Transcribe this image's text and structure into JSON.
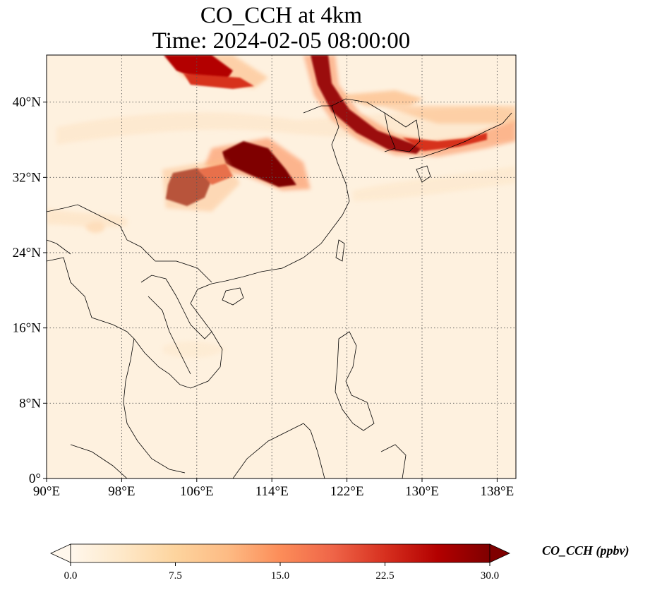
{
  "title": {
    "line1": "CO_CCH at 4km",
    "line2": "Time: 2024-02-05 08:00:00"
  },
  "map": {
    "projection": "PlateCarree",
    "lon_range": [
      90,
      140
    ],
    "lat_range": [
      0,
      45
    ],
    "gridlines": "dotted",
    "lon_ticks": [
      {
        "value": 90,
        "label": "90°E"
      },
      {
        "value": 98,
        "label": "98°E"
      },
      {
        "value": 106,
        "label": "106°E"
      },
      {
        "value": 114,
        "label": "114°E"
      },
      {
        "value": 122,
        "label": "122°E"
      },
      {
        "value": 130,
        "label": "130°E"
      },
      {
        "value": 138,
        "label": "138°E"
      }
    ],
    "lat_ticks": [
      {
        "value": 0,
        "label": "0°"
      },
      {
        "value": 8,
        "label": "8°N"
      },
      {
        "value": 16,
        "label": "16°N"
      },
      {
        "value": 24,
        "label": "24°N"
      },
      {
        "value": 32,
        "label": "32°N"
      },
      {
        "value": 40,
        "label": "40°N"
      }
    ]
  },
  "colorbar": {
    "label": "CO_CCH (ppbv)",
    "colormap": "OrRd",
    "range": [
      0,
      30
    ],
    "extend": "both",
    "ticks": [
      "0.0",
      "7.5",
      "15.0",
      "22.5",
      "30.0"
    ],
    "colors": [
      "#fff7ec",
      "#fee8c8",
      "#fdd49e",
      "#fdbb84",
      "#fc8d59",
      "#ef6548",
      "#d7301f",
      "#b30000",
      "#7f0000"
    ]
  }
}
